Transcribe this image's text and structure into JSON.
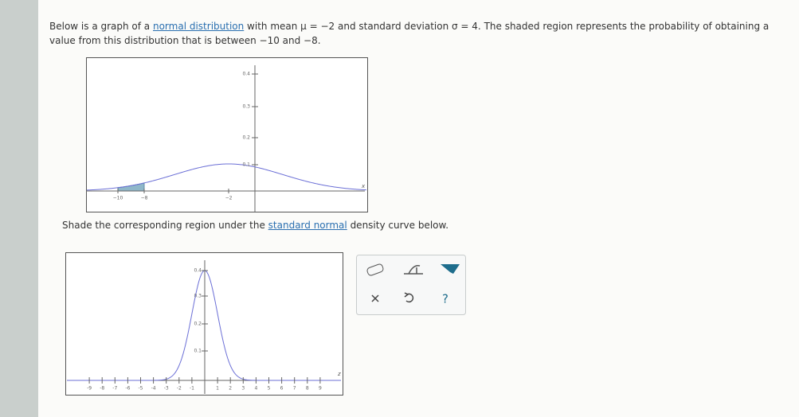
{
  "intro": {
    "before": "Below is a graph of a ",
    "link": "normal distribution",
    "after": " with mean μ = −2 and standard deviation σ = 4. The shaded region represents the probability of obtaining a value from this distribution that is between −10 and −8."
  },
  "graph1": {
    "y_ticks": [
      "0.4",
      "0.3",
      "0.2",
      "0.1"
    ],
    "x_labels": [
      "−10",
      "−8",
      "−2"
    ],
    "axis_label": "x"
  },
  "instruction": {
    "before": "Shade the corresponding region under the ",
    "link": "standard normal",
    "after": " density curve below."
  },
  "graph2": {
    "y_ticks": [
      "0.4",
      "0.3",
      "0.2",
      "0.1"
    ],
    "x_labels": [
      "-9",
      "-8",
      "-7",
      "-6",
      "-5",
      "-4",
      "-3",
      "-2",
      "-1",
      "1",
      "2",
      "3",
      "4",
      "5",
      "6",
      "7",
      "8",
      "9"
    ],
    "axis_label": "z"
  },
  "toolbar": {
    "help": "?"
  }
}
